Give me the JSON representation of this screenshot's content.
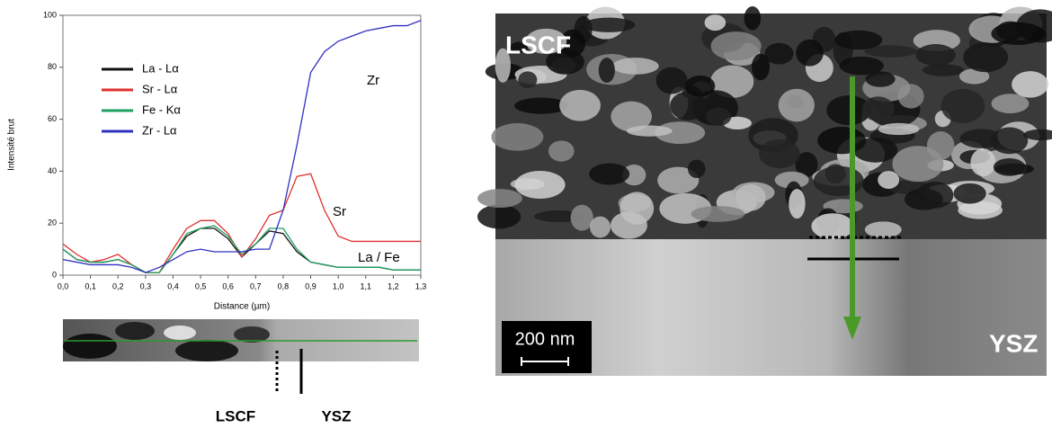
{
  "chart_data": {
    "type": "line",
    "ylabel": "Intensité brut",
    "xlabel": "Distance (µm)",
    "x": [
      0,
      0.05,
      0.1,
      0.15,
      0.2,
      0.25,
      0.3,
      0.35,
      0.4,
      0.45,
      0.5,
      0.55,
      0.6,
      0.65,
      0.7,
      0.75,
      0.8,
      0.85,
      0.9,
      0.95,
      1.0,
      1.05,
      1.1,
      1.15,
      1.2,
      1.25,
      1.3
    ],
    "series": [
      {
        "name": "La - Lα",
        "color": "#111111",
        "values": [
          10,
          6,
          5,
          5,
          6,
          4,
          1,
          1,
          8,
          15,
          18,
          18,
          14,
          7,
          12,
          17,
          16,
          9,
          5,
          4,
          3,
          3,
          3,
          3,
          2,
          2,
          2
        ]
      },
      {
        "name": "Sr - Lα",
        "color": "#e03030",
        "values": [
          12,
          8,
          5,
          6,
          8,
          4,
          1,
          1,
          10,
          18,
          21,
          21,
          16,
          7,
          14,
          23,
          25,
          38,
          39,
          25,
          15,
          13,
          13,
          13,
          13,
          13,
          13
        ]
      },
      {
        "name": "Fe - Kα",
        "color": "#20a060",
        "values": [
          10,
          6,
          5,
          5,
          6,
          4,
          1,
          1,
          8,
          16,
          18,
          19,
          15,
          8,
          12,
          18,
          18,
          10,
          5,
          4,
          3,
          3,
          3,
          3,
          2,
          2,
          2
        ]
      },
      {
        "name": "Zr - Lα",
        "color": "#3030c0",
        "values": [
          6,
          5,
          4,
          4,
          4,
          3,
          1,
          3,
          6,
          9,
          10,
          9,
          9,
          9,
          10,
          10,
          25,
          50,
          78,
          86,
          90,
          92,
          94,
          95,
          96,
          96,
          98
        ]
      }
    ],
    "annotations": [
      "Zr",
      "Sr",
      "La / Fe"
    ],
    "xlim": [
      0,
      1.3
    ],
    "ylim": [
      0,
      100
    ],
    "xticks": [
      {
        "value": 0,
        "label": "0,0"
      },
      {
        "value": 0.1,
        "label": "0,1"
      },
      {
        "value": 0.2,
        "label": "0,2"
      },
      {
        "value": 0.3,
        "label": "0,3"
      },
      {
        "value": 0.4,
        "label": "0,4"
      },
      {
        "value": 0.5,
        "label": "0,5"
      },
      {
        "value": 0.6,
        "label": "0,6"
      },
      {
        "value": 0.7,
        "label": "0,7"
      },
      {
        "value": 0.8,
        "label": "0,8"
      },
      {
        "value": 0.9,
        "label": "0,9"
      },
      {
        "value": 1.0,
        "label": "1,0"
      },
      {
        "value": 1.1,
        "label": "1,1"
      },
      {
        "value": 1.2,
        "label": "1,2"
      },
      {
        "value": 1.3,
        "label": "1,3"
      }
    ],
    "yticks": [
      0,
      20,
      40,
      60,
      80,
      100
    ]
  },
  "strip": {
    "left_label": "LSCF",
    "right_label": "YSZ"
  },
  "micrograph": {
    "top_label": "LSCF",
    "bottom_label": "YSZ",
    "scale": "200 nm"
  }
}
